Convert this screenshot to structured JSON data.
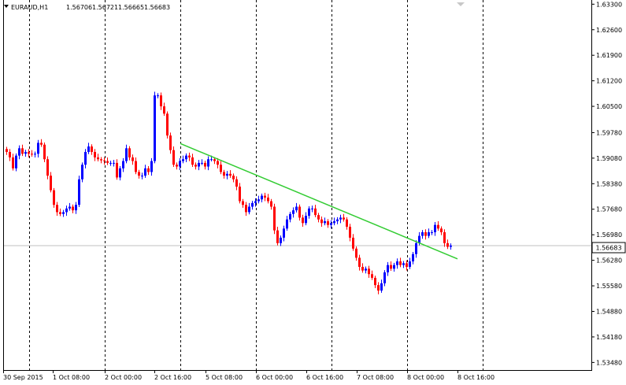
{
  "header": {
    "symbol": "EURAUD,H1",
    "open": "1.56706",
    "high": "1.56721",
    "low": "1.56665",
    "close": "1.56683"
  },
  "colors": {
    "bull": "#0000ff",
    "bear": "#ff0000",
    "grid": "#000000",
    "trendline": "#33cc33",
    "bid_line": "#c0c0c0",
    "price_tag_bg": "#ffffff"
  },
  "chart_data": {
    "type": "candlestick",
    "symbol": "EURAUD",
    "timeframe": "H1",
    "grid": true,
    "ylim": [
      1.5338,
      1.6335
    ],
    "y_ticks": [
      "1.63300",
      "1.62600",
      "1.61900",
      "1.61200",
      "1.60500",
      "1.59780",
      "1.59080",
      "1.58380",
      "1.57680",
      "1.56980",
      "1.56280",
      "1.55580",
      "1.54880",
      "1.54180",
      "1.53480"
    ],
    "x_ticks": [
      "30 Sep 2015",
      "1 Oct 08:00",
      "2 Oct 00:00",
      "2 Oct 16:00",
      "5 Oct 08:00",
      "6 Oct 00:00",
      "6 Oct 16:00",
      "7 Oct 08:00",
      "8 Oct 00:00",
      "8 Oct 16:00"
    ],
    "current_price": "1.56683",
    "closes": [
      1.5925,
      1.591,
      1.588,
      1.5915,
      1.5935,
      1.592,
      1.5925,
      1.592,
      1.5918,
      1.592,
      1.595,
      1.5945,
      1.5905,
      1.586,
      1.582,
      1.578,
      1.576,
      1.5755,
      1.576,
      1.577,
      1.5775,
      1.5765,
      1.578,
      1.585,
      1.589,
      1.5925,
      1.594,
      1.5925,
      1.591,
      1.5905,
      1.5902,
      1.59,
      1.5895,
      1.5895,
      1.5895,
      1.5855,
      1.588,
      1.59,
      1.5935,
      1.591,
      1.59,
      1.587,
      1.586,
      1.586,
      1.588,
      1.587,
      1.59,
      1.608,
      1.608,
      1.605,
      1.603,
      1.597,
      1.593,
      1.589,
      1.5885,
      1.59,
      1.5905,
      1.5915,
      1.591,
      1.589,
      1.5885,
      1.5895,
      1.5895,
      1.5885,
      1.5905,
      1.5905,
      1.59,
      1.589,
      1.587,
      1.586,
      1.5865,
      1.586,
      1.585,
      1.583,
      1.579,
      1.578,
      1.576,
      1.5775,
      1.5785,
      1.579,
      1.5795,
      1.5805,
      1.58,
      1.579,
      1.5775,
      1.571,
      1.5675,
      1.569,
      1.5715,
      1.574,
      1.5755,
      1.5765,
      1.5775,
      1.5745,
      1.573,
      1.575,
      1.577,
      1.577,
      1.5752,
      1.574,
      1.573,
      1.5735,
      1.5725,
      1.573,
      1.5735,
      1.574,
      1.5745,
      1.574,
      1.572,
      1.569,
      1.566,
      1.5635,
      1.561,
      1.56,
      1.5605,
      1.559,
      1.558,
      1.556,
      1.5545,
      1.5565,
      1.5595,
      1.5615,
      1.5605,
      1.5615,
      1.5625,
      1.5615,
      1.562,
      1.561,
      1.5625,
      1.5645,
      1.5675,
      1.5695,
      1.5705,
      1.5695,
      1.5705,
      1.5705,
      1.5725,
      1.5715,
      1.5705,
      1.5675,
      1.5665,
      1.56683
    ]
  }
}
